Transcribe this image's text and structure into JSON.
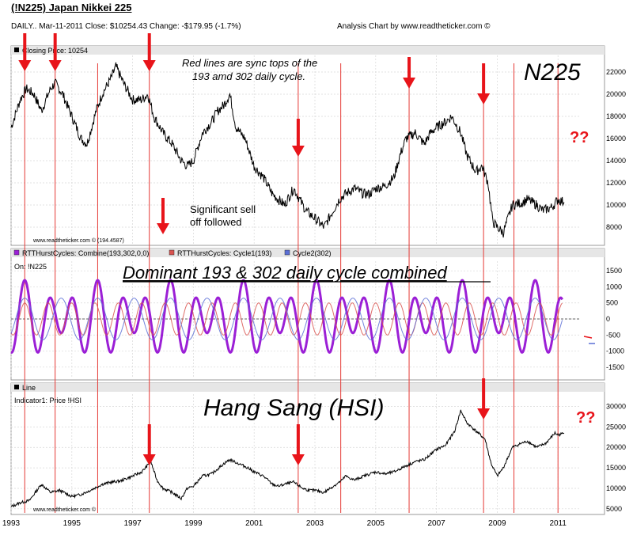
{
  "header": {
    "title": "(!N225) Japan Nikkei 225",
    "info": "DAILY.. Mar-11-2011   Close: $10254.43   Change: -$179.95   (-1.7%)",
    "credit": "Analysis Chart by www.readtheticker.com ©"
  },
  "chart_data": [
    {
      "type": "line",
      "panel": "top",
      "legend": "Closing Price: 10254",
      "big_label": "N225",
      "watermark": "www.readtheticker.com © (194.4587)",
      "annotations": [
        "Red lines are sync tops of the",
        "193 amd 302 daily cycle.",
        "Significant sell",
        "off followed",
        "??"
      ],
      "y_ticks": [
        8000,
        10000,
        12000,
        14000,
        16000,
        18000,
        20000,
        22000
      ],
      "ylim": [
        6500,
        23500
      ],
      "series": [
        {
          "x": [
            1993.0,
            1993.3,
            1993.5,
            1993.75,
            1994.0,
            1994.3,
            1994.45,
            1994.7,
            1995.0,
            1995.3,
            1995.5,
            1995.8,
            1996.0,
            1996.3,
            1996.45,
            1996.7,
            1997.0,
            1997.3,
            1997.5,
            1997.7,
            1998.0,
            1998.3,
            1998.6,
            1998.8,
            1999.0,
            1999.3,
            1999.6,
            1999.8,
            2000.0,
            2000.2,
            2000.4,
            2000.7,
            2001.0,
            2001.3,
            2001.6,
            2001.8,
            2002.0,
            2002.3,
            2002.5,
            2002.7,
            2003.0,
            2003.3,
            2003.5,
            2003.8,
            2004.0,
            2004.3,
            2004.6,
            2004.8,
            2005.0,
            2005.3,
            2005.6,
            2005.8,
            2006.0,
            2006.3,
            2006.6,
            2006.8,
            2007.0,
            2007.3,
            2007.5,
            2007.8,
            2008.0,
            2008.3,
            2008.5,
            2008.7,
            2008.85,
            2009.0,
            2009.2,
            2009.5,
            2009.8,
            2010.0,
            2010.3,
            2010.5,
            2010.8,
            2011.0,
            2011.2
          ],
          "y": [
            17000,
            19500,
            20500,
            20000,
            18500,
            20500,
            21000,
            20000,
            18000,
            16000,
            15500,
            18500,
            20000,
            21500,
            22500,
            21000,
            19500,
            19500,
            20000,
            18000,
            16500,
            15500,
            14000,
            13500,
            14000,
            16500,
            17500,
            18500,
            19000,
            20000,
            17000,
            16000,
            13500,
            12500,
            11000,
            10500,
            10000,
            11500,
            10500,
            9500,
            8800,
            8000,
            9000,
            10500,
            11000,
            11500,
            11000,
            11000,
            11500,
            11700,
            12500,
            14500,
            16000,
            16500,
            15500,
            16500,
            17000,
            17500,
            18000,
            16500,
            14500,
            13000,
            13500,
            12000,
            8500,
            8000,
            7500,
            10000,
            10200,
            10500,
            10000,
            9500,
            9800,
            10500,
            10254
          ]
        }
      ]
    },
    {
      "type": "line",
      "panel": "middle",
      "legend": [
        "RTTHurstCycles: Combine(193,302,0,0)",
        "RTTHurstCycles: Cycle1(193)",
        "Cycle2(302)"
      ],
      "legend_sub": "On: !N225",
      "legend_colors": [
        "#9b1fd6",
        "#d9534f",
        "#5b6fd6"
      ],
      "big_label": "Dominant 193 & 302 daily cycle combined",
      "y_ticks": [
        -1500,
        -1000,
        -500,
        0,
        500,
        1000,
        1500
      ],
      "ylim": [
        -1800,
        1800
      ],
      "series": [
        {
          "name": "Combine(193,302,0,0)",
          "period_years": 0.8,
          "amp": 1100
        },
        {
          "name": "Cycle1(193)",
          "period_years": 0.77,
          "amp": 500
        },
        {
          "name": "Cycle2(302)",
          "period_years": 1.2,
          "amp": 650
        }
      ]
    },
    {
      "type": "line",
      "panel": "bottom",
      "legend": "Line",
      "legend_sub": "Indicator1: Price !HSI",
      "big_label": "Hang Sang (HSI)",
      "watermark": "www.readtheticker.com ©",
      "annotations": [
        "??"
      ],
      "y_ticks": [
        5000,
        10000,
        15000,
        20000,
        25000,
        30000
      ],
      "ylim": [
        4000,
        33000
      ],
      "series": [
        {
          "x": [
            1993.0,
            1993.3,
            1993.6,
            1994.0,
            1994.3,
            1994.6,
            1995.0,
            1995.3,
            1995.6,
            1996.0,
            1996.3,
            1996.6,
            1997.0,
            1997.3,
            1997.6,
            1997.8,
            1998.0,
            1998.3,
            1998.6,
            1998.8,
            1999.0,
            1999.3,
            1999.6,
            2000.0,
            2000.2,
            2000.5,
            2000.8,
            2001.0,
            2001.3,
            2001.6,
            2001.8,
            2002.0,
            2002.3,
            2002.6,
            2002.8,
            2003.0,
            2003.3,
            2003.6,
            2003.9,
            2004.0,
            2004.3,
            2004.6,
            2005.0,
            2005.3,
            2005.6,
            2006.0,
            2006.3,
            2006.6,
            2007.0,
            2007.3,
            2007.6,
            2007.8,
            2008.0,
            2008.3,
            2008.6,
            2008.8,
            2009.0,
            2009.2,
            2009.5,
            2009.8,
            2010.0,
            2010.3,
            2010.6,
            2010.9,
            2011.0,
            2011.2
          ],
          "y": [
            5500,
            6500,
            7000,
            11000,
            9000,
            9500,
            8000,
            8500,
            9500,
            11000,
            11500,
            11800,
            13000,
            14000,
            16500,
            12000,
            10000,
            9000,
            7500,
            10000,
            10500,
            13000,
            13500,
            16000,
            17000,
            16000,
            15000,
            14000,
            13000,
            11000,
            10500,
            11000,
            11500,
            10000,
            9500,
            9500,
            9000,
            10500,
            12000,
            13000,
            12000,
            13000,
            14000,
            13500,
            14000,
            15500,
            16500,
            17000,
            19500,
            20500,
            24000,
            29000,
            26000,
            24000,
            22000,
            16000,
            13000,
            15000,
            20000,
            21000,
            21500,
            20000,
            21000,
            23500,
            23000,
            23500
          ]
        }
      ]
    }
  ],
  "x_axis": {
    "ticks": [
      "1993",
      "1995",
      "1997",
      "1999",
      "2001",
      "2003",
      "2005",
      "2007",
      "2009",
      "2011"
    ],
    "xlim": [
      1993.0,
      2011.75
    ]
  },
  "sync_lines": [
    1993.45,
    1994.45,
    1995.85,
    1997.55,
    2002.45,
    2003.85,
    2006.1,
    2008.55,
    2009.55,
    2011.0
  ],
  "arrows": [
    {
      "panel": "top",
      "x": 1993.45
    },
    {
      "panel": "top",
      "x": 1994.45
    },
    {
      "panel": "top",
      "x": 1997.55
    },
    {
      "panel": "top",
      "x": 1998.0
    },
    {
      "panel": "top",
      "x": 2002.45
    },
    {
      "panel": "top",
      "x": 2006.1
    },
    {
      "panel": "top",
      "x": 2008.55
    },
    {
      "panel": "bottom",
      "x": 1997.55
    },
    {
      "panel": "bottom",
      "x": 2002.45
    },
    {
      "panel": "bottom",
      "x": 2008.55
    }
  ],
  "colors": {
    "sync_line": "#e53935",
    "arrow": "#e8141a",
    "price": "#000000",
    "grid": "#d8d8d8",
    "panel_bar": "#e6e6e6"
  }
}
